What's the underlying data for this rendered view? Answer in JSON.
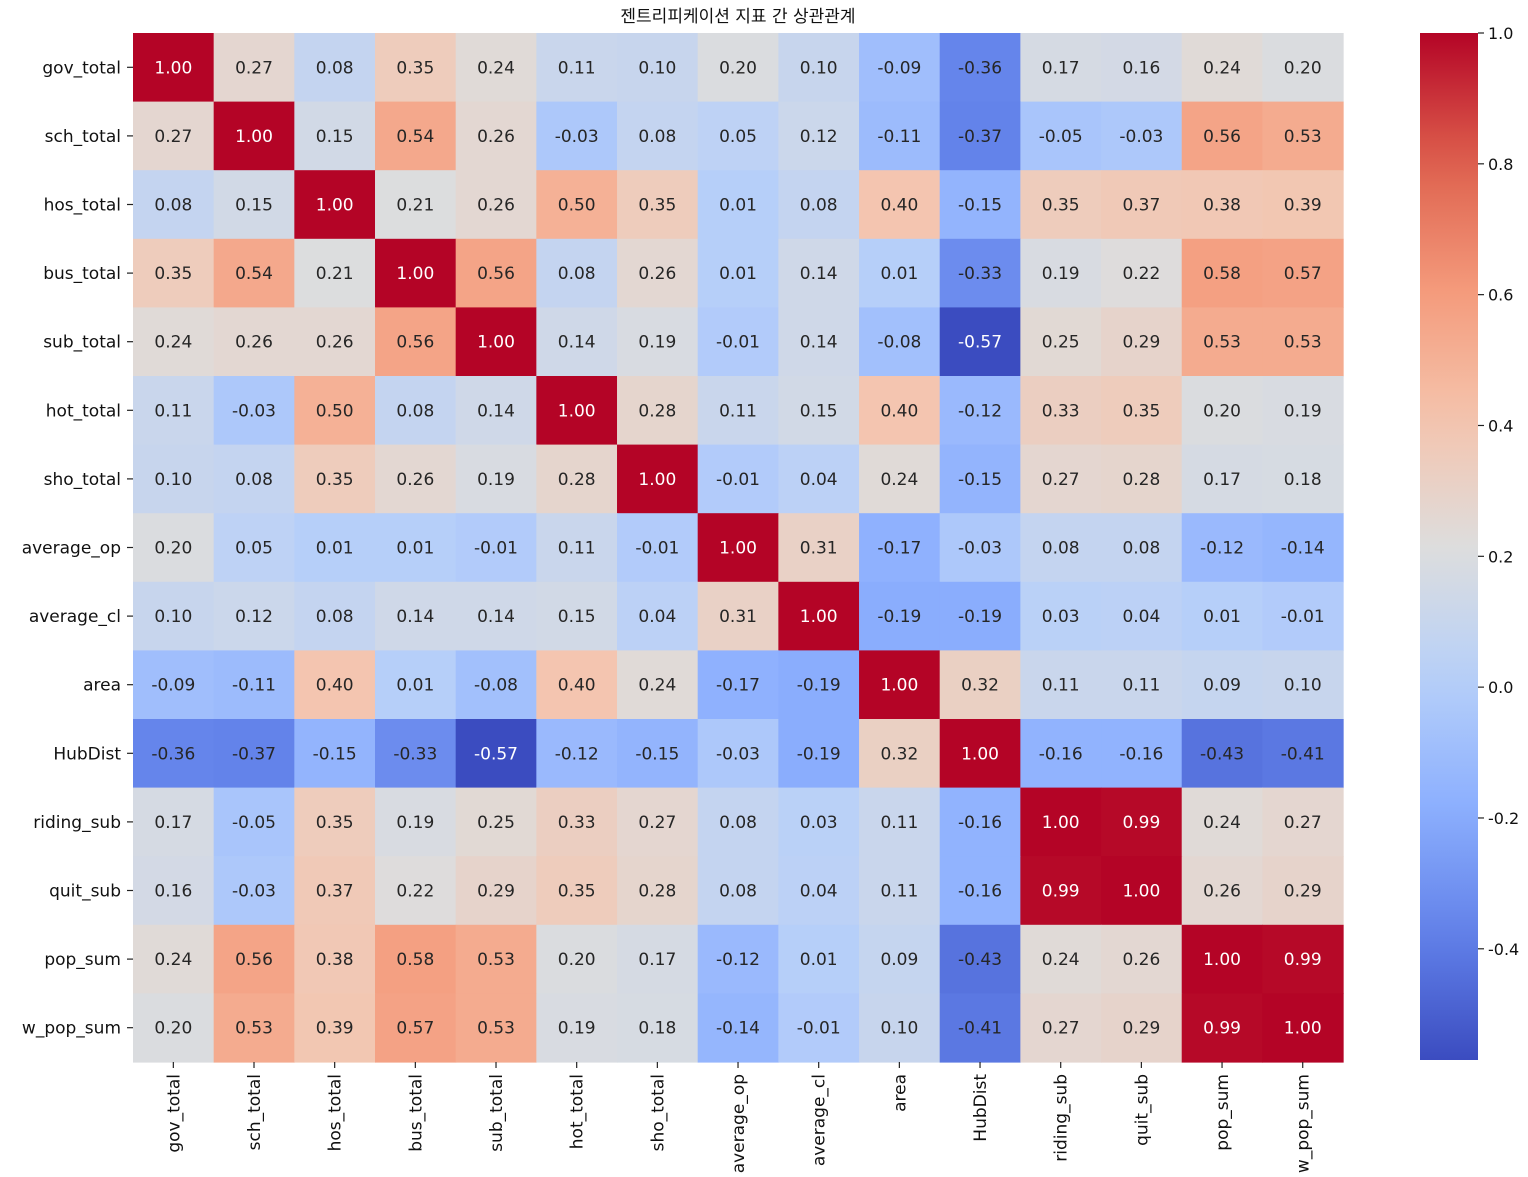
{
  "chart_data": {
    "type": "heatmap",
    "title": "젠트리피케이션 지표 간 상관관계",
    "rows": [
      "gov_total",
      "sch_total",
      "hos_total",
      "bus_total",
      "sub_total",
      "hot_total",
      "sho_total",
      "average_op",
      "average_cl",
      "area",
      "HubDist",
      "riding_sub",
      "quit_sub",
      "pop_sum",
      "w_pop_sum"
    ],
    "columns": [
      "gov_total",
      "sch_total",
      "hos_total",
      "bus_total",
      "sub_total",
      "hot_total",
      "sho_total",
      "average_op",
      "average_cl",
      "area",
      "HubDist",
      "riding_sub",
      "quit_sub",
      "pop_sum",
      "w_pop_sum"
    ],
    "values": [
      [
        1.0,
        0.27,
        0.08,
        0.35,
        0.24,
        0.11,
        0.1,
        0.2,
        0.1,
        -0.09,
        -0.36,
        0.17,
        0.16,
        0.24,
        0.2
      ],
      [
        0.27,
        1.0,
        0.15,
        0.54,
        0.26,
        -0.03,
        0.08,
        0.05,
        0.12,
        -0.11,
        -0.37,
        -0.05,
        -0.03,
        0.56,
        0.53
      ],
      [
        0.08,
        0.15,
        1.0,
        0.21,
        0.26,
        0.5,
        0.35,
        0.01,
        0.08,
        0.4,
        -0.15,
        0.35,
        0.37,
        0.38,
        0.39
      ],
      [
        0.35,
        0.54,
        0.21,
        1.0,
        0.56,
        0.08,
        0.26,
        0.01,
        0.14,
        0.01,
        -0.33,
        0.19,
        0.22,
        0.58,
        0.57
      ],
      [
        0.24,
        0.26,
        0.26,
        0.56,
        1.0,
        0.14,
        0.19,
        -0.01,
        0.14,
        -0.08,
        -0.57,
        0.25,
        0.29,
        0.53,
        0.53
      ],
      [
        0.11,
        -0.03,
        0.5,
        0.08,
        0.14,
        1.0,
        0.28,
        0.11,
        0.15,
        0.4,
        -0.12,
        0.33,
        0.35,
        0.2,
        0.19
      ],
      [
        0.1,
        0.08,
        0.35,
        0.26,
        0.19,
        0.28,
        1.0,
        -0.01,
        0.04,
        0.24,
        -0.15,
        0.27,
        0.28,
        0.17,
        0.18
      ],
      [
        0.2,
        0.05,
        0.01,
        0.01,
        -0.01,
        0.11,
        -0.01,
        1.0,
        0.31,
        -0.17,
        -0.03,
        0.08,
        0.08,
        -0.12,
        -0.14
      ],
      [
        0.1,
        0.12,
        0.08,
        0.14,
        0.14,
        0.15,
        0.04,
        0.31,
        1.0,
        -0.19,
        -0.19,
        0.03,
        0.04,
        0.01,
        -0.01
      ],
      [
        -0.09,
        -0.11,
        0.4,
        0.01,
        -0.08,
        0.4,
        0.24,
        -0.17,
        -0.19,
        1.0,
        0.32,
        0.11,
        0.11,
        0.09,
        0.1
      ],
      [
        -0.36,
        -0.37,
        -0.15,
        -0.33,
        -0.57,
        -0.12,
        -0.15,
        -0.03,
        -0.19,
        0.32,
        1.0,
        -0.16,
        -0.16,
        -0.43,
        -0.41
      ],
      [
        0.17,
        -0.05,
        0.35,
        0.19,
        0.25,
        0.33,
        0.27,
        0.08,
        0.03,
        0.11,
        -0.16,
        1.0,
        0.99,
        0.24,
        0.27
      ],
      [
        0.16,
        -0.03,
        0.37,
        0.22,
        0.29,
        0.35,
        0.28,
        0.08,
        0.04,
        0.11,
        -0.16,
        0.99,
        1.0,
        0.26,
        0.29
      ],
      [
        0.24,
        0.56,
        0.38,
        0.58,
        0.53,
        0.2,
        0.17,
        -0.12,
        0.01,
        0.09,
        -0.43,
        0.24,
        0.26,
        1.0,
        0.99
      ],
      [
        0.2,
        0.53,
        0.39,
        0.57,
        0.53,
        0.19,
        0.18,
        -0.14,
        -0.01,
        0.1,
        -0.41,
        0.27,
        0.29,
        0.99,
        1.0
      ]
    ],
    "colormap": "coolwarm",
    "vmin": -0.57,
    "vmax": 1.0,
    "colorbar_ticks": [
      1.0,
      0.8,
      0.6,
      0.4,
      0.2,
      0.0,
      -0.2,
      -0.4
    ],
    "annotations_format": "0.00",
    "colorbar_placement": "right"
  }
}
